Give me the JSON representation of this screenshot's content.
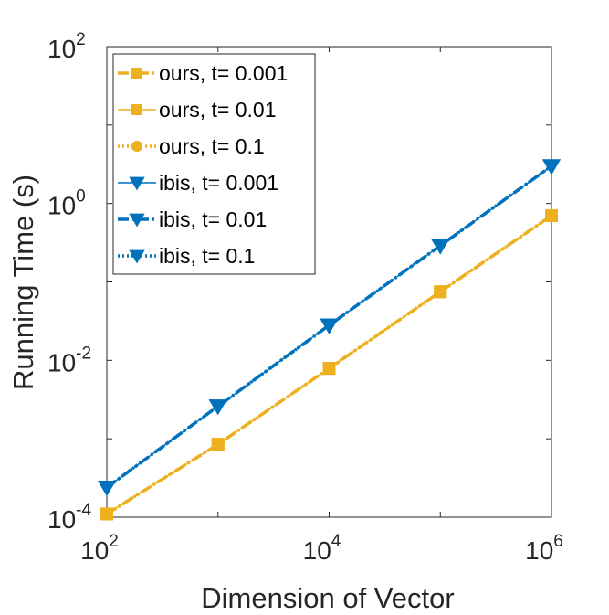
{
  "chart_data": {
    "type": "line",
    "xscale": "log",
    "yscale": "log",
    "xlabel": "Dimension of Vector",
    "ylabel": "Running Time (s)",
    "xlim": [
      100,
      1000000
    ],
    "ylim": [
      0.0001,
      100
    ],
    "grid": false,
    "legend_position": "top-left",
    "x_ticks": [
      {
        "base": "10",
        "exp": "2"
      },
      {
        "base": "10",
        "exp": "4"
      },
      {
        "base": "10",
        "exp": "6"
      }
    ],
    "y_ticks": [
      {
        "base": "10",
        "exp": "-4"
      },
      {
        "base": "10",
        "exp": "-2"
      },
      {
        "base": "10",
        "exp": "0"
      },
      {
        "base": "10",
        "exp": "2"
      }
    ],
    "x": [
      100,
      1000,
      10000,
      100000,
      1000000
    ],
    "series": [
      {
        "name": "ours, t= 0.001",
        "color": "#EDB120",
        "marker": "square",
        "line_style": "dashdot",
        "line_width": "thick",
        "values": [
          0.00011,
          0.00085,
          0.0079,
          0.075,
          0.7
        ]
      },
      {
        "name": "ours, t= 0.01",
        "color": "#EDB120",
        "marker": "square",
        "line_style": "solid",
        "line_width": "thin",
        "values": [
          0.00011,
          0.00085,
          0.0079,
          0.075,
          0.7
        ]
      },
      {
        "name": "ours, t= 0.1",
        "color": "#EDB120",
        "marker": "circle",
        "line_style": "dotted",
        "line_width": "thick",
        "values": [
          0.00011,
          0.00085,
          0.0079,
          0.075,
          0.7
        ]
      },
      {
        "name": "ibis, t= 0.001",
        "color": "#0072BD",
        "marker": "triangle-down",
        "line_style": "solid",
        "line_width": "thin",
        "values": [
          0.00024,
          0.0026,
          0.028,
          0.29,
          3.0
        ]
      },
      {
        "name": "ibis, t= 0.01",
        "color": "#0072BD",
        "marker": "triangle-down",
        "line_style": "dashdot",
        "line_width": "thick",
        "values": [
          0.00024,
          0.0026,
          0.028,
          0.29,
          3.0
        ]
      },
      {
        "name": "ibis, t= 0.1",
        "color": "#0072BD",
        "marker": "triangle-down",
        "line_style": "dotted",
        "line_width": "thick",
        "values": [
          0.00024,
          0.0026,
          0.028,
          0.29,
          3.0
        ]
      }
    ]
  }
}
